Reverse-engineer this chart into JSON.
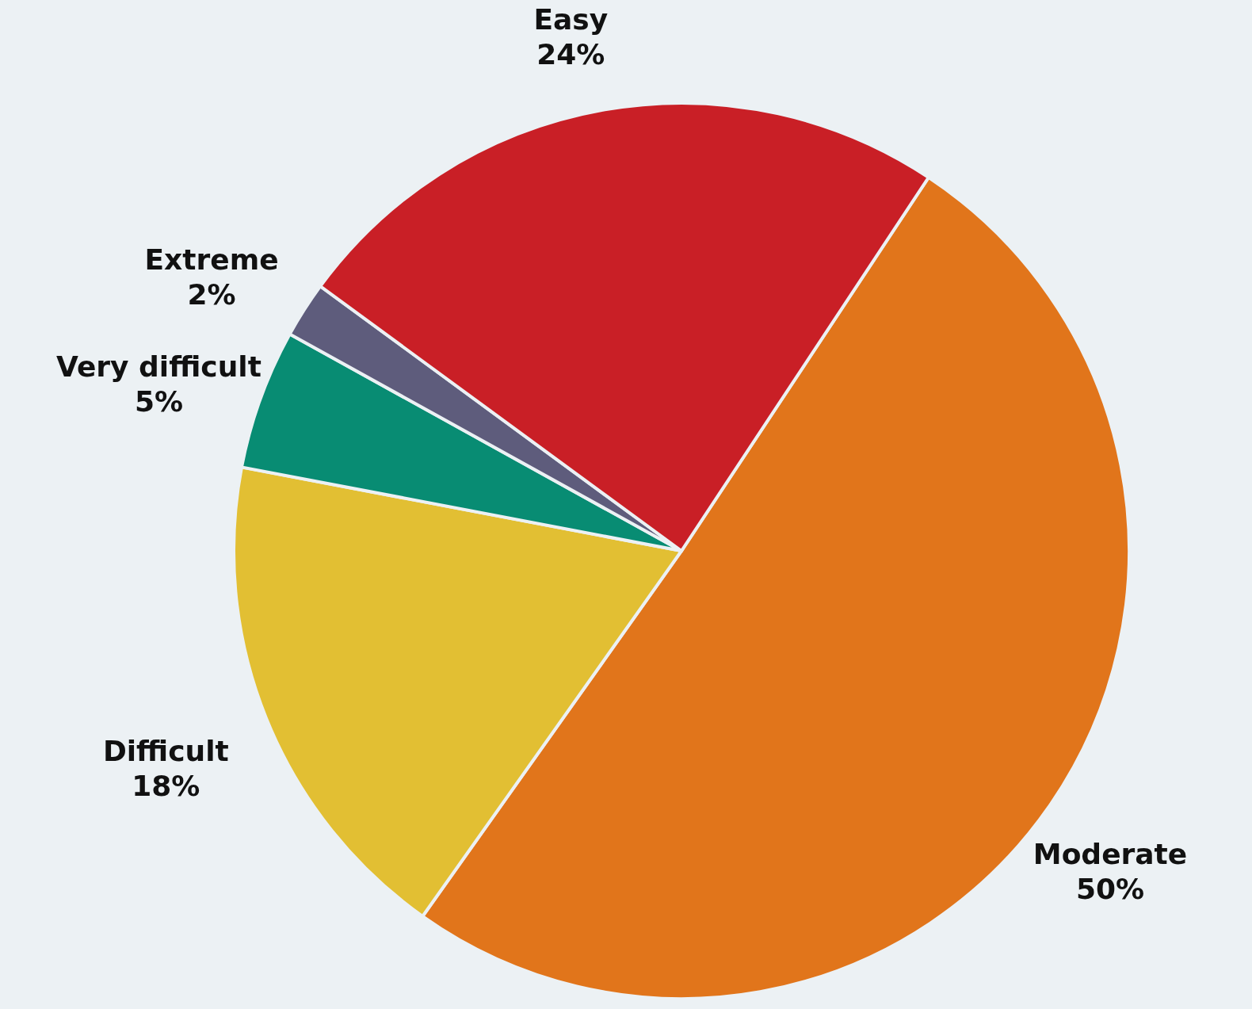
{
  "chart_data": {
    "type": "pie",
    "categories": [
      "Moderate",
      "Difficult",
      "Very difficult",
      "Extreme",
      "Easy"
    ],
    "values": [
      50,
      18,
      5,
      2,
      24
    ],
    "value_labels": [
      "50%",
      "18%",
      "5%",
      "2%",
      "24%"
    ],
    "colors": [
      "#e1751b",
      "#e2bf33",
      "#088c73",
      "#5e5c7c",
      "#c91f26"
    ]
  }
}
